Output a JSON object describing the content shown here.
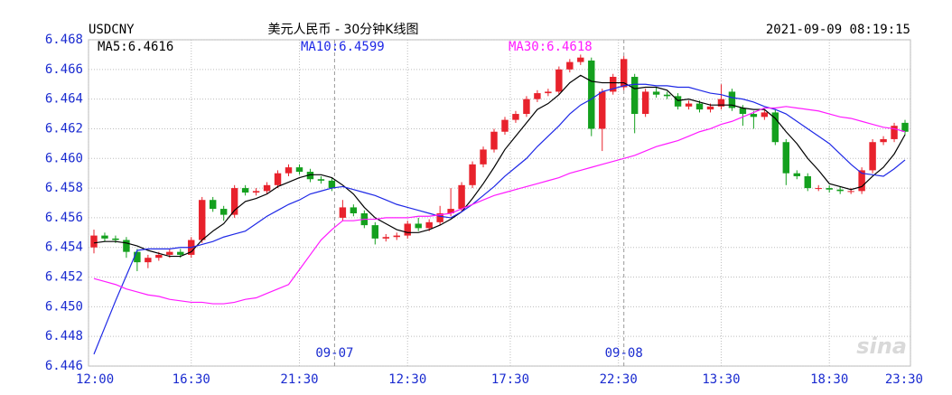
{
  "chart_data": {
    "type": "candlestick",
    "symbol": "USDCNY",
    "title": "美元人民币 - 30分钟K线图",
    "timestamp": "2021-09-09 08:19:15",
    "watermark": "sina",
    "up_color": "#e8222c",
    "down_color": "#14a01e",
    "grid": true,
    "xlim": [
      0,
      76
    ],
    "ylim": [
      6.446,
      6.468
    ],
    "yticks": [
      6.446,
      6.448,
      {
        "value": 6.45,
        "label": "6.450"
      },
      6.452,
      6.454,
      6.456,
      6.458,
      {
        "value": 6.46,
        "label": "6.460"
      },
      6.462,
      6.464,
      6.466,
      6.468
    ],
    "xticks": [
      {
        "value": 0,
        "label": "12:00"
      },
      {
        "value": 9.5,
        "label": "16:30"
      },
      {
        "value": 19.5,
        "label": "21:30"
      },
      {
        "value": 29.5,
        "label": "12:30"
      },
      {
        "value": 39,
        "label": "17:30"
      },
      {
        "value": 49,
        "label": "22:30"
      },
      {
        "value": 58.5,
        "label": "13:30"
      },
      {
        "value": 68.5,
        "label": "18:30"
      },
      {
        "value": 76,
        "label": "23:30"
      }
    ],
    "day_markers": [
      {
        "value": 22.75,
        "label": "09-07"
      },
      {
        "value": 49.5,
        "label": "09-08"
      }
    ],
    "x": [
      0.5,
      1.5,
      2.5,
      3.5,
      4.5,
      5.5,
      6.5,
      7.5,
      8.5,
      9.5,
      10.5,
      11.5,
      12.5,
      13.5,
      14.5,
      15.5,
      16.5,
      17.5,
      18.5,
      19.5,
      20.5,
      21.5,
      22.5,
      23.5,
      24.5,
      25.5,
      26.5,
      27.5,
      28.5,
      29.5,
      30.5,
      31.5,
      32.5,
      33.5,
      34.5,
      35.5,
      36.5,
      37.5,
      38.5,
      39.5,
      40.5,
      41.5,
      42.5,
      43.5,
      44.5,
      45.5,
      46.5,
      47.5,
      48.5,
      49.5,
      50.5,
      51.5,
      52.5,
      53.5,
      54.5,
      55.5,
      56.5,
      57.5,
      58.5,
      59.5,
      60.5,
      61.5,
      62.5,
      63.5,
      64.5,
      65.5,
      66.5,
      67.5,
      68.5,
      69.5,
      70.5,
      71.5,
      72.5,
      73.5,
      74.5,
      75.5
    ],
    "open": [
      6.454,
      6.4548,
      6.4546,
      6.4545,
      6.4537,
      6.453,
      6.4533,
      6.4535,
      6.4537,
      6.4535,
      6.4545,
      6.4572,
      6.4566,
      6.4562,
      6.458,
      6.4577,
      6.4578,
      6.4582,
      6.459,
      6.4594,
      6.4591,
      6.4586,
      6.4585,
      6.456,
      6.4567,
      6.4563,
      6.4555,
      6.4546,
      6.4547,
      6.4548,
      6.4556,
      6.4553,
      6.4557,
      6.4563,
      6.4566,
      6.4582,
      6.4596,
      6.4606,
      6.4618,
      6.4626,
      6.463,
      6.464,
      6.4644,
      6.4645,
      6.466,
      6.4665,
      6.4666,
      6.462,
      6.4645,
      6.4648,
      6.4655,
      6.463,
      6.4645,
      6.4643,
      6.4642,
      6.4635,
      6.4637,
      6.4633,
      6.4635,
      6.4645,
      6.4634,
      6.463,
      6.4628,
      6.4631,
      6.4611,
      6.459,
      6.4588,
      6.458,
      6.458,
      6.4579,
      6.4578,
      6.4578,
      6.4592,
      6.4611,
      6.4613,
      6.4624
    ],
    "high": [
      6.4552,
      6.455,
      6.4548,
      6.4547,
      6.4539,
      6.4535,
      6.4537,
      6.4539,
      6.4539,
      6.4547,
      6.4574,
      6.4574,
      6.4568,
      6.4582,
      6.4582,
      6.458,
      6.4584,
      6.4592,
      6.4596,
      6.4596,
      6.4593,
      6.4588,
      6.4587,
      6.4572,
      6.4569,
      6.4565,
      6.4557,
      6.4549,
      6.455,
      6.4558,
      6.456,
      6.4559,
      6.4568,
      6.458,
      6.4584,
      6.4598,
      6.4608,
      6.462,
      6.4628,
      6.4632,
      6.4642,
      6.4646,
      6.4647,
      6.4662,
      6.4667,
      6.467,
      6.4668,
      6.4647,
      6.4657,
      6.4669,
      6.4657,
      6.4647,
      6.4648,
      6.4645,
      6.4644,
      6.4639,
      6.4639,
      6.4637,
      6.465,
      6.4647,
      6.4636,
      6.4632,
      6.4633,
      6.4633,
      6.4613,
      6.4592,
      6.459,
      6.4582,
      6.4582,
      6.4581,
      6.458,
      6.4594,
      6.4613,
      6.4615,
      6.4624,
      6.4626
    ],
    "low": [
      6.4536,
      6.4544,
      6.4543,
      6.4533,
      6.4524,
      6.4526,
      6.4531,
      6.4533,
      6.4533,
      6.4533,
      6.4543,
      6.4564,
      6.4558,
      6.456,
      6.4575,
      6.4575,
      6.4576,
      6.458,
      6.4588,
      6.4589,
      6.4584,
      6.4583,
      6.4578,
      6.4558,
      6.4561,
      6.4553,
      6.4542,
      6.4544,
      6.4545,
      6.4546,
      6.4551,
      6.4551,
      6.4555,
      6.4561,
      6.4564,
      6.458,
      6.4594,
      6.4604,
      6.4616,
      6.4624,
      6.4628,
      6.4638,
      6.4642,
      6.4643,
      6.4658,
      6.4663,
      6.4615,
      6.4605,
      6.4643,
      6.4646,
      6.4617,
      6.4628,
      6.4641,
      6.464,
      6.4633,
      6.4633,
      6.4631,
      6.4631,
      6.4633,
      6.4632,
      6.4622,
      6.462,
      6.4626,
      6.4609,
      6.4582,
      6.4586,
      6.4578,
      6.4578,
      6.4577,
      6.4576,
      6.4576,
      6.4576,
      6.459,
      6.4609,
      6.4611,
      6.4616
    ],
    "close": [
      6.4548,
      6.4546,
      6.4545,
      6.4537,
      6.453,
      6.4533,
      6.4535,
      6.4537,
      6.4535,
      6.4545,
      6.4572,
      6.4566,
      6.4562,
      6.458,
      6.4577,
      6.4578,
      6.4582,
      6.459,
      6.4594,
      6.4591,
      6.4586,
      6.4585,
      6.458,
      6.4567,
      6.4563,
      6.4555,
      6.4546,
      6.4547,
      6.4548,
      6.4556,
      6.4553,
      6.4557,
      6.4563,
      6.4566,
      6.4582,
      6.4596,
      6.4606,
      6.4618,
      6.4626,
      6.463,
      6.464,
      6.4644,
      6.4645,
      6.466,
      6.4665,
      6.4668,
      6.462,
      6.4645,
      6.4655,
      6.4667,
      6.463,
      6.4645,
      6.4643,
      6.4642,
      6.4635,
      6.4637,
      6.4633,
      6.4635,
      6.464,
      6.4634,
      6.463,
      6.4628,
      6.4631,
      6.4611,
      6.459,
      6.4588,
      6.458,
      6.458,
      6.4579,
      6.4578,
      6.4578,
      6.4592,
      6.4611,
      6.4613,
      6.4622,
      6.4618
    ],
    "series": [
      {
        "name": "MA5:6.4616",
        "color": "#000000",
        "values": [
          6.4543,
          6.4544,
          6.4544,
          6.4543,
          6.4541,
          6.4538,
          6.4536,
          6.4534,
          6.4534,
          6.4537,
          6.4545,
          6.4551,
          6.4556,
          6.4565,
          6.4571,
          6.4573,
          6.4576,
          6.4581,
          6.4584,
          6.4587,
          6.4589,
          6.4589,
          6.4587,
          6.4582,
          6.4576,
          6.4567,
          6.456,
          6.4556,
          6.4552,
          6.455,
          6.455,
          6.4552,
          6.4555,
          6.4559,
          6.4564,
          6.4573,
          6.4583,
          6.4594,
          6.4606,
          6.4615,
          6.4624,
          6.4633,
          6.4637,
          6.4643,
          6.4651,
          6.4656,
          6.4652,
          6.4651,
          6.4651,
          6.4651,
          6.4647,
          6.4648,
          6.4648,
          6.4646,
          6.4639,
          6.464,
          6.4638,
          6.4636,
          6.4636,
          6.4636,
          6.4634,
          6.4633,
          6.4633,
          6.4627,
          6.4618,
          6.461,
          6.46,
          6.4592,
          6.4583,
          6.4581,
          6.4579,
          6.4581,
          6.4588,
          6.4594,
          6.4603,
          6.4616
        ]
      },
      {
        "name": "MA10:6.4599",
        "color": "#1e28e6",
        "values": [
          6.4468,
          6.4486,
          6.4504,
          6.4521,
          6.4538,
          6.4539,
          6.4539,
          6.4539,
          6.454,
          6.454,
          6.4542,
          6.4544,
          6.4547,
          6.4549,
          6.4551,
          6.4556,
          6.4561,
          6.4565,
          6.4569,
          6.4572,
          6.4576,
          6.4578,
          6.458,
          6.4581,
          6.4579,
          6.4577,
          6.4575,
          6.4572,
          6.4569,
          6.4567,
          6.4565,
          6.4563,
          6.4561,
          6.456,
          6.4564,
          6.4569,
          6.4575,
          6.4581,
          6.4588,
          6.4594,
          6.46,
          6.4608,
          6.4615,
          6.4622,
          6.463,
          6.4636,
          6.464,
          6.4645,
          6.4647,
          6.4649,
          6.465,
          6.465,
          6.4649,
          6.4649,
          6.4648,
          6.4648,
          6.4646,
          6.4644,
          6.4643,
          6.4641,
          6.464,
          6.4638,
          6.4635,
          6.4633,
          6.463,
          6.4625,
          6.462,
          6.4615,
          6.461,
          6.4603,
          6.4596,
          6.459,
          6.4589,
          6.4588,
          6.4593,
          6.4599
        ]
      },
      {
        "name": "MA30:6.4618",
        "color": "#ff1aff",
        "values": [
          6.4519,
          6.4517,
          6.4515,
          6.4512,
          6.451,
          6.4508,
          6.4507,
          6.4505,
          6.4504,
          6.4503,
          6.4503,
          6.4502,
          6.4502,
          6.4503,
          6.4505,
          6.4506,
          6.4509,
          6.4512,
          6.4515,
          6.4525,
          6.4535,
          6.4545,
          6.4552,
          6.4558,
          6.4558,
          6.4559,
          6.4559,
          6.456,
          6.456,
          6.456,
          6.4561,
          6.4561,
          6.4562,
          6.4563,
          6.4566,
          6.4569,
          6.4572,
          6.4575,
          6.4577,
          6.4579,
          6.4581,
          6.4583,
          6.4585,
          6.4587,
          6.459,
          6.4592,
          6.4594,
          6.4596,
          6.4598,
          6.46,
          6.4602,
          6.4605,
          6.4608,
          6.461,
          6.4612,
          6.4615,
          6.4618,
          6.462,
          6.4623,
          6.4625,
          6.4628,
          6.4631,
          6.4634,
          6.4634,
          6.4635,
          6.4634,
          6.4633,
          6.4632,
          6.463,
          6.4628,
          6.4627,
          6.4625,
          6.4623,
          6.4621,
          6.462,
          6.4618
        ]
      }
    ]
  }
}
